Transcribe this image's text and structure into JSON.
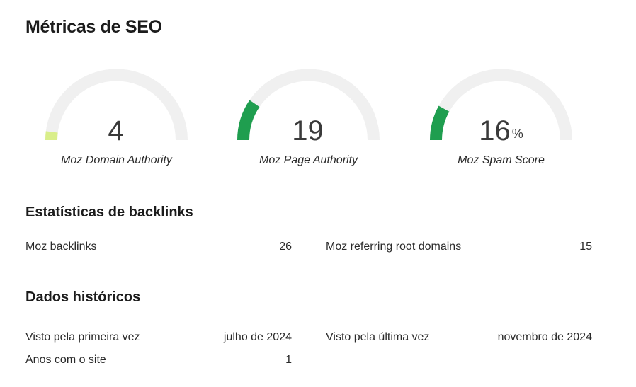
{
  "title": "Métricas de SEO",
  "gauges": [
    {
      "label": "Moz Domain Authority",
      "value": "4",
      "suffix": "",
      "fraction": 0.04,
      "color": "#d9ee8a"
    },
    {
      "label": "Moz Page Authority",
      "value": "19",
      "suffix": "",
      "fraction": 0.19,
      "color": "#1f9e4f"
    },
    {
      "label": "Moz Spam Score",
      "value": "16",
      "suffix": "%",
      "fraction": 0.16,
      "color": "#1f9e4f"
    }
  ],
  "backlinks": {
    "title": "Estatísticas de backlinks",
    "rows": [
      {
        "label": "Moz backlinks",
        "value": "26"
      },
      {
        "label": "Moz referring root domains",
        "value": "15"
      }
    ]
  },
  "history": {
    "title": "Dados históricos",
    "rows": [
      {
        "label": "Visto pela primeira vez",
        "value": "julho de 2024"
      },
      {
        "label": "Visto pela última vez",
        "value": "novembro de 2024"
      },
      {
        "label": "Anos com o site",
        "value": "1"
      }
    ]
  },
  "colors": {
    "track": "#f0f0f0"
  }
}
